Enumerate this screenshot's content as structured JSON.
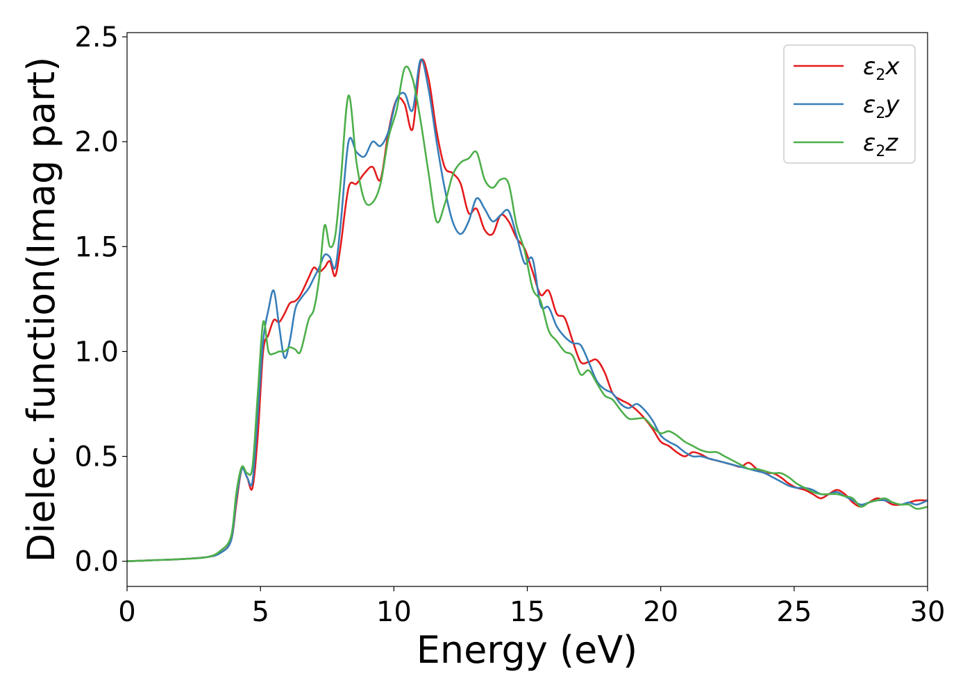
{
  "chart_data": {
    "type": "line",
    "xlabel": "Energy (eV)",
    "ylabel": "Dielec. function(Imag part)",
    "xlim": [
      0,
      30
    ],
    "ylim": [
      -0.12,
      2.52
    ],
    "xticks": [
      0,
      5,
      10,
      15,
      20,
      25,
      30
    ],
    "xtick_labels": [
      "0",
      "5",
      "10",
      "15",
      "20",
      "25",
      "30"
    ],
    "yticks": [
      0.0,
      0.5,
      1.0,
      1.5,
      2.0,
      2.5
    ],
    "ytick_labels": [
      "0.0",
      "0.5",
      "1.0",
      "1.5",
      "2.0",
      "2.5"
    ],
    "grid": false,
    "legend_position": "top-right",
    "series": [
      {
        "name": "ε2x",
        "symbol": "ε",
        "sub": "2",
        "axis": "x",
        "color": "#e41a1c",
        "x": [
          0,
          1,
          2,
          3,
          3.5,
          3.9,
          4.1,
          4.3,
          4.5,
          4.7,
          4.9,
          5.1,
          5.3,
          5.5,
          5.7,
          5.9,
          6.1,
          6.3,
          6.5,
          6.8,
          7.0,
          7.2,
          7.4,
          7.6,
          7.8,
          8.0,
          8.3,
          8.6,
          8.9,
          9.2,
          9.5,
          9.8,
          10.1,
          10.4,
          10.7,
          11.0,
          11.3,
          11.6,
          11.9,
          12.2,
          12.5,
          12.8,
          13.1,
          13.4,
          13.7,
          14.0,
          14.3,
          14.6,
          14.9,
          15.2,
          15.5,
          15.8,
          16.1,
          16.4,
          16.7,
          17.0,
          17.3,
          17.6,
          17.9,
          18.2,
          18.5,
          18.8,
          19.1,
          19.4,
          19.7,
          20.0,
          20.3,
          20.6,
          20.9,
          21.2,
          21.5,
          21.8,
          22.1,
          22.4,
          22.7,
          23.0,
          23.3,
          23.6,
          23.9,
          24.2,
          24.5,
          24.8,
          25.1,
          25.4,
          25.7,
          26.0,
          26.3,
          26.6,
          26.9,
          27.2,
          27.5,
          27.8,
          28.1,
          28.4,
          28.7,
          29.0,
          29.3,
          29.6,
          30.0
        ],
        "y": [
          0.0,
          0.005,
          0.01,
          0.02,
          0.04,
          0.1,
          0.28,
          0.44,
          0.4,
          0.35,
          0.6,
          1.0,
          1.08,
          1.15,
          1.14,
          1.18,
          1.23,
          1.24,
          1.27,
          1.35,
          1.4,
          1.38,
          1.4,
          1.43,
          1.36,
          1.5,
          1.78,
          1.8,
          1.85,
          1.88,
          1.82,
          2.05,
          2.2,
          2.18,
          2.06,
          2.38,
          2.3,
          2.05,
          1.88,
          1.85,
          1.8,
          1.66,
          1.68,
          1.58,
          1.56,
          1.65,
          1.62,
          1.54,
          1.49,
          1.38,
          1.27,
          1.29,
          1.18,
          1.16,
          1.05,
          0.95,
          0.95,
          0.96,
          0.9,
          0.8,
          0.77,
          0.75,
          0.72,
          0.68,
          0.63,
          0.57,
          0.55,
          0.52,
          0.5,
          0.52,
          0.51,
          0.49,
          0.48,
          0.47,
          0.46,
          0.45,
          0.47,
          0.44,
          0.42,
          0.42,
          0.4,
          0.37,
          0.35,
          0.34,
          0.32,
          0.3,
          0.32,
          0.34,
          0.32,
          0.28,
          0.26,
          0.28,
          0.3,
          0.29,
          0.27,
          0.27,
          0.28,
          0.29,
          0.29
        ]
      },
      {
        "name": "ε2y",
        "symbol": "ε",
        "sub": "2",
        "axis": "y",
        "color": "#377eb8",
        "x": [
          0,
          1,
          2,
          3,
          3.5,
          3.9,
          4.1,
          4.3,
          4.5,
          4.7,
          4.9,
          5.1,
          5.3,
          5.5,
          5.7,
          5.9,
          6.1,
          6.3,
          6.5,
          6.8,
          7.0,
          7.2,
          7.4,
          7.6,
          7.8,
          8.0,
          8.3,
          8.6,
          8.9,
          9.2,
          9.5,
          9.8,
          10.1,
          10.4,
          10.7,
          11.0,
          11.3,
          11.6,
          11.9,
          12.2,
          12.5,
          12.8,
          13.1,
          13.4,
          13.7,
          14.0,
          14.3,
          14.6,
          14.9,
          15.2,
          15.5,
          15.8,
          16.1,
          16.4,
          16.7,
          17.0,
          17.3,
          17.6,
          17.9,
          18.2,
          18.5,
          18.8,
          19.1,
          19.4,
          19.7,
          20.0,
          20.3,
          20.6,
          20.9,
          21.2,
          21.5,
          21.8,
          22.1,
          22.4,
          22.7,
          23.0,
          23.3,
          23.6,
          23.9,
          24.2,
          24.5,
          24.8,
          25.1,
          25.4,
          25.7,
          26.0,
          26.3,
          26.6,
          26.9,
          27.2,
          27.5,
          27.8,
          28.1,
          28.4,
          28.7,
          29.0,
          29.3,
          29.6,
          30.0
        ],
        "y": [
          0.0,
          0.005,
          0.01,
          0.02,
          0.04,
          0.1,
          0.3,
          0.44,
          0.4,
          0.38,
          0.7,
          1.05,
          1.2,
          1.29,
          1.12,
          0.97,
          1.05,
          1.2,
          1.25,
          1.3,
          1.35,
          1.4,
          1.46,
          1.45,
          1.4,
          1.6,
          2.0,
          1.95,
          1.93,
          2.0,
          1.98,
          2.05,
          2.2,
          2.23,
          2.15,
          2.39,
          2.25,
          2.0,
          1.78,
          1.62,
          1.56,
          1.62,
          1.73,
          1.68,
          1.62,
          1.65,
          1.67,
          1.55,
          1.42,
          1.44,
          1.22,
          1.21,
          1.12,
          1.07,
          1.04,
          1.03,
          0.95,
          0.86,
          0.82,
          0.8,
          0.75,
          0.73,
          0.75,
          0.72,
          0.67,
          0.6,
          0.57,
          0.55,
          0.52,
          0.5,
          0.5,
          0.49,
          0.48,
          0.47,
          0.46,
          0.45,
          0.44,
          0.43,
          0.42,
          0.4,
          0.38,
          0.36,
          0.35,
          0.35,
          0.34,
          0.32,
          0.32,
          0.33,
          0.31,
          0.29,
          0.27,
          0.28,
          0.29,
          0.29,
          0.28,
          0.27,
          0.28,
          0.27,
          0.29
        ]
      },
      {
        "name": "ε2z",
        "symbol": "ε",
        "sub": "2",
        "axis": "z",
        "color": "#4daf4a",
        "x": [
          0,
          1,
          2,
          3,
          3.5,
          3.9,
          4.1,
          4.3,
          4.5,
          4.7,
          4.9,
          5.1,
          5.3,
          5.5,
          5.7,
          5.9,
          6.1,
          6.3,
          6.5,
          6.8,
          7.0,
          7.2,
          7.4,
          7.6,
          7.8,
          8.0,
          8.3,
          8.6,
          8.9,
          9.2,
          9.5,
          9.8,
          10.1,
          10.4,
          10.7,
          11.0,
          11.3,
          11.6,
          11.9,
          12.2,
          12.5,
          12.8,
          13.1,
          13.4,
          13.7,
          14.0,
          14.3,
          14.6,
          14.9,
          15.2,
          15.5,
          15.8,
          16.1,
          16.4,
          16.7,
          17.0,
          17.3,
          17.6,
          17.9,
          18.2,
          18.5,
          18.8,
          19.1,
          19.4,
          19.7,
          20.0,
          20.3,
          20.6,
          20.9,
          21.2,
          21.5,
          21.8,
          22.1,
          22.4,
          22.7,
          23.0,
          23.3,
          23.6,
          23.9,
          24.2,
          24.5,
          24.8,
          25.1,
          25.4,
          25.7,
          26.0,
          26.3,
          26.6,
          26.9,
          27.2,
          27.5,
          27.8,
          28.1,
          28.4,
          28.7,
          29.0,
          29.3,
          29.6,
          30.0
        ],
        "y": [
          0.0,
          0.005,
          0.01,
          0.02,
          0.05,
          0.12,
          0.33,
          0.45,
          0.42,
          0.45,
          0.8,
          1.14,
          1.0,
          0.99,
          1.0,
          1.0,
          1.02,
          1.01,
          1.0,
          1.15,
          1.2,
          1.35,
          1.6,
          1.5,
          1.55,
          1.8,
          2.22,
          1.9,
          1.72,
          1.71,
          1.8,
          2.02,
          2.15,
          2.35,
          2.3,
          2.1,
          1.85,
          1.62,
          1.7,
          1.84,
          1.9,
          1.92,
          1.95,
          1.82,
          1.78,
          1.82,
          1.8,
          1.6,
          1.48,
          1.3,
          1.24,
          1.1,
          1.05,
          1.0,
          0.98,
          0.89,
          0.91,
          0.85,
          0.79,
          0.77,
          0.72,
          0.68,
          0.68,
          0.68,
          0.64,
          0.61,
          0.62,
          0.6,
          0.57,
          0.55,
          0.53,
          0.52,
          0.52,
          0.5,
          0.48,
          0.46,
          0.44,
          0.44,
          0.43,
          0.42,
          0.42,
          0.4,
          0.37,
          0.35,
          0.33,
          0.32,
          0.32,
          0.32,
          0.31,
          0.3,
          0.26,
          0.28,
          0.29,
          0.3,
          0.28,
          0.27,
          0.27,
          0.25,
          0.26
        ]
      }
    ]
  }
}
